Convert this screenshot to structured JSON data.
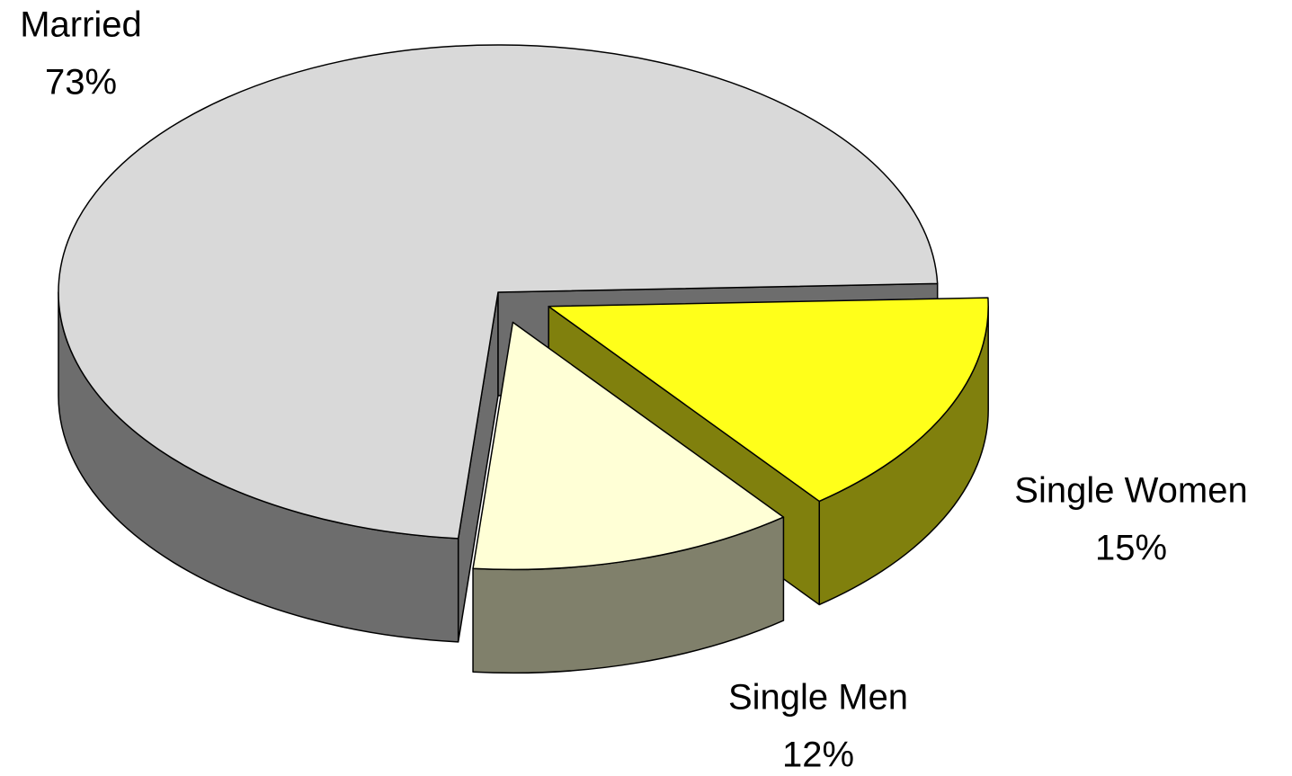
{
  "chart_data": {
    "type": "pie",
    "categories": [
      "Married",
      "Single Women",
      "Single Men"
    ],
    "values": [
      73,
      15,
      12
    ],
    "value_labels": [
      "73%",
      "15%",
      "12%"
    ],
    "colors": [
      "#d9d9d9",
      "#ffff1a",
      "#ffffd6"
    ]
  }
}
